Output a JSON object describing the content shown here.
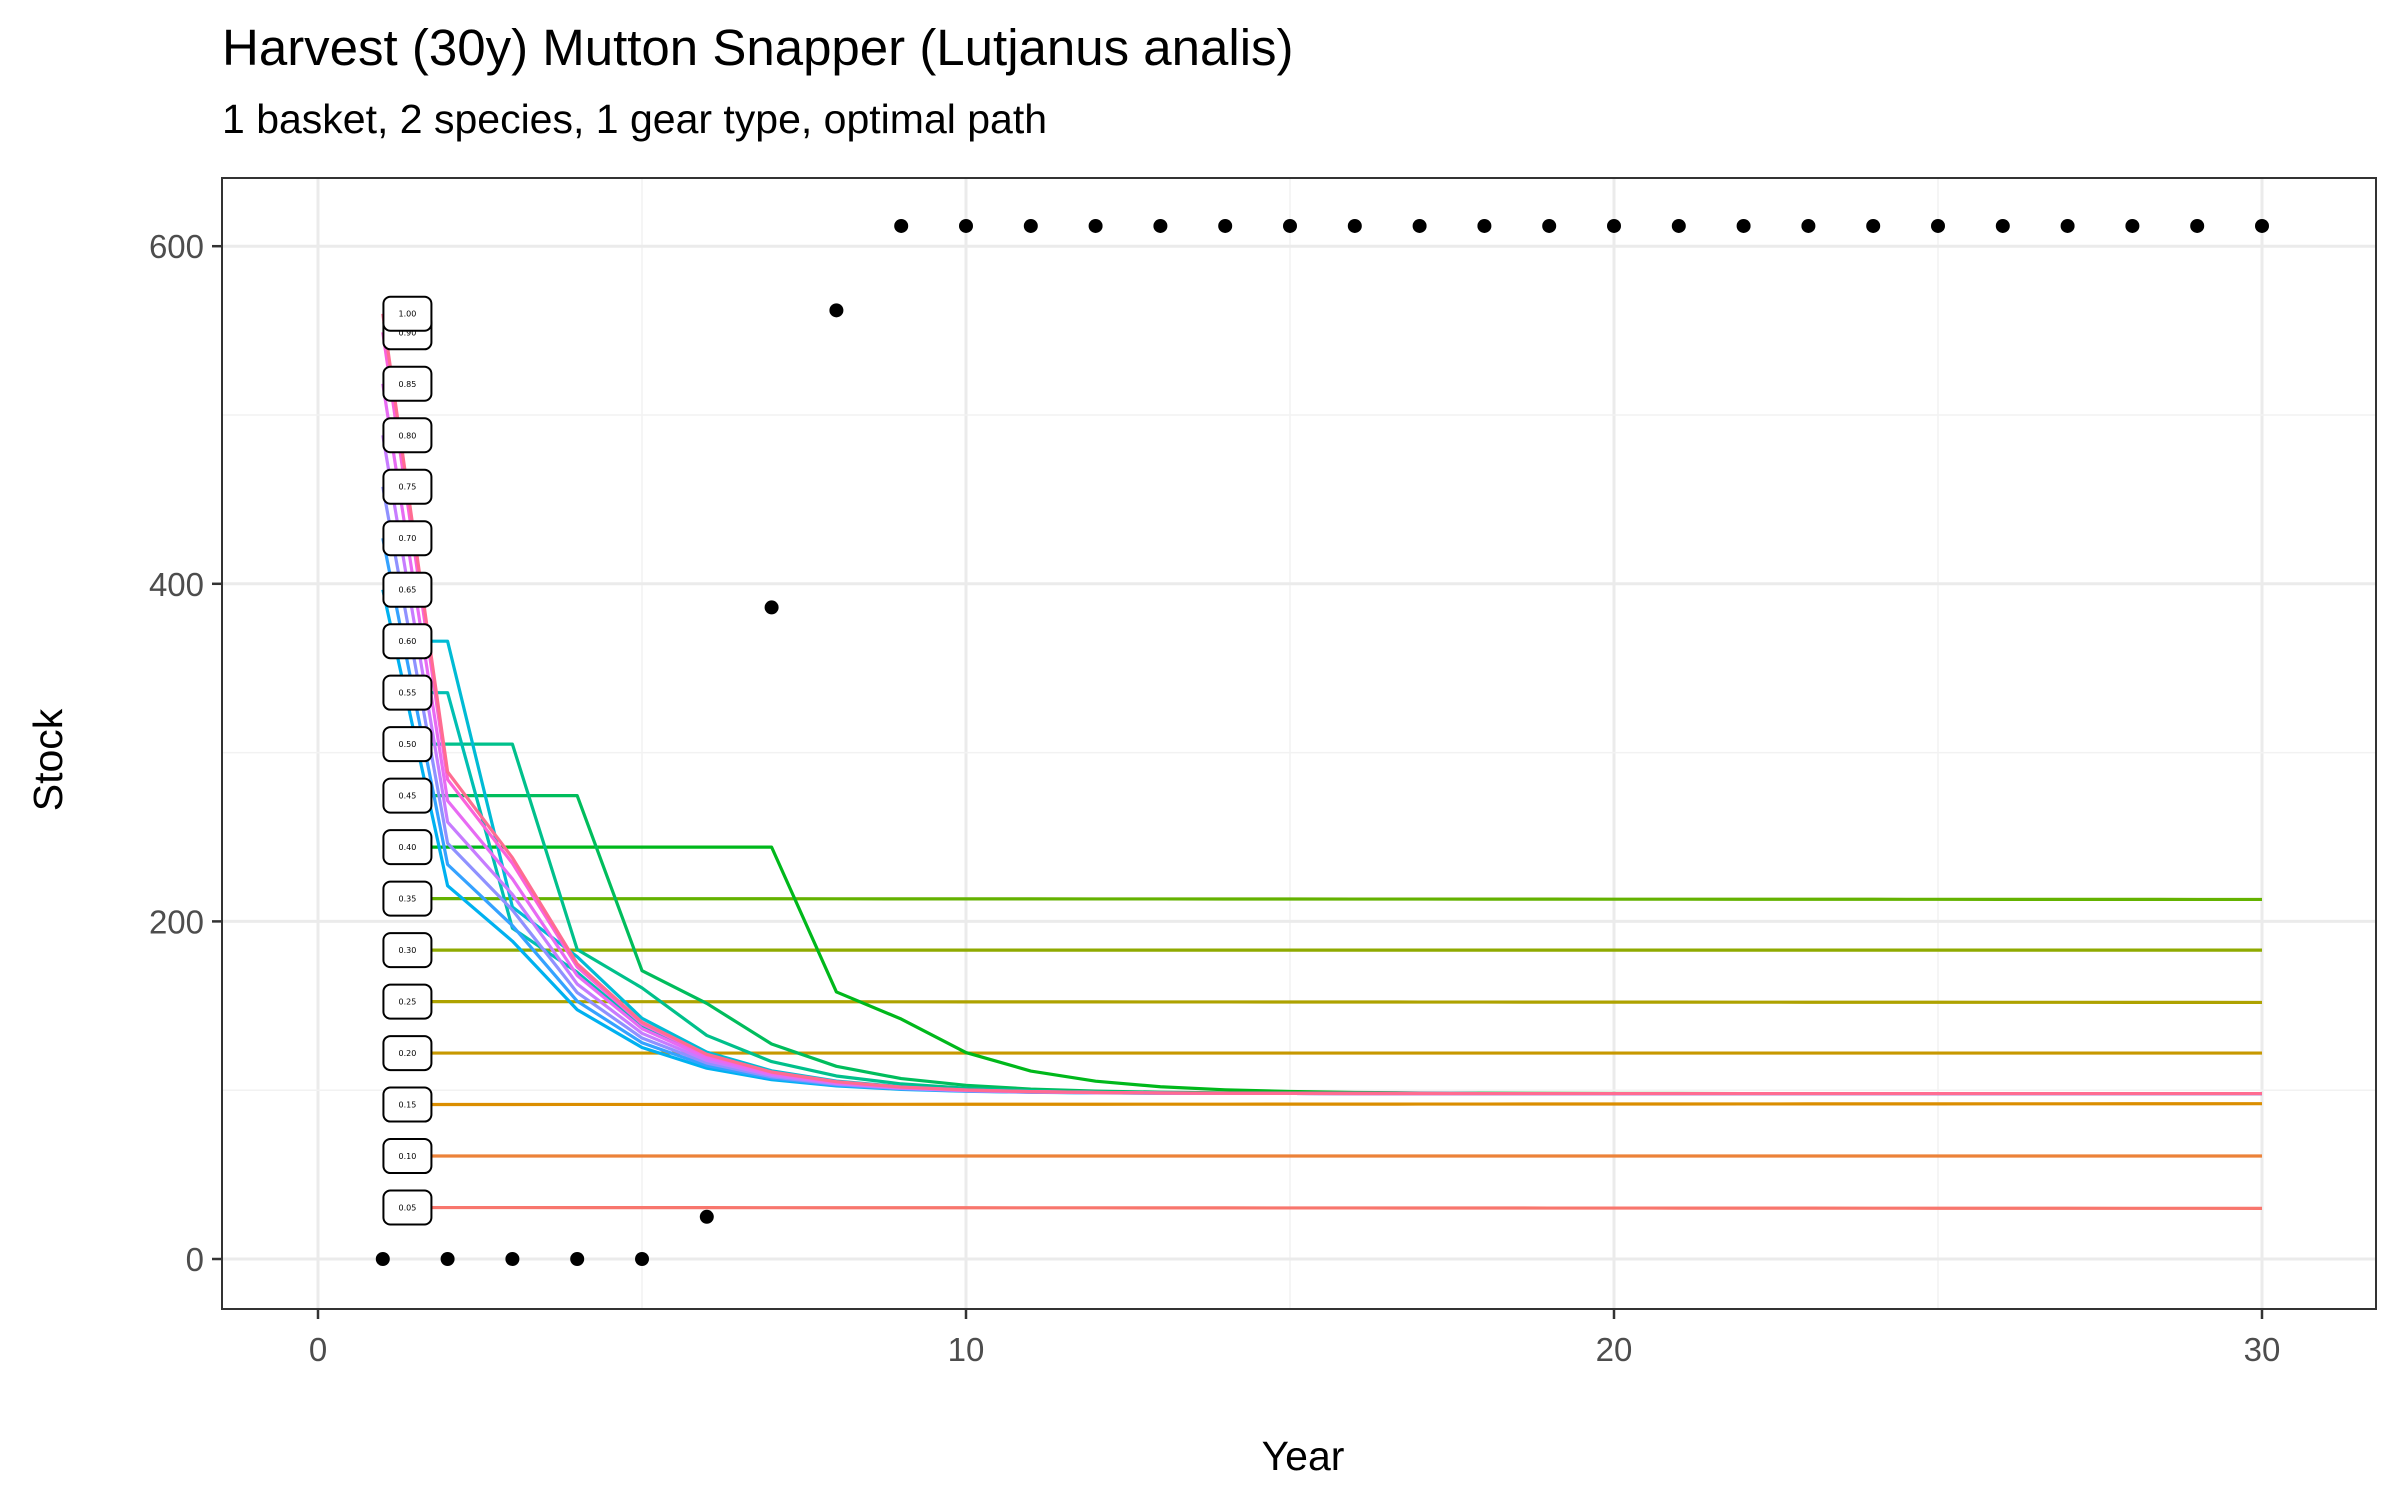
{
  "chart_data": {
    "type": "line",
    "title": "Harvest (30y) Mutton Snapper (Lutjanus analis)",
    "subtitle": "1 basket, 2 species, 1 gear type, optimal path",
    "xlabel": "Year",
    "ylabel": "Stock",
    "xlim": [
      -1.5,
      31.6
    ],
    "ylim": [
      -30,
      640
    ],
    "x_ticks": [
      0,
      10,
      20,
      30
    ],
    "y_ticks": [
      0,
      200,
      400,
      600
    ],
    "grid": true,
    "legend": "none",
    "line_labels": [
      "0.05",
      "0.10",
      "0.15",
      "0.20",
      "0.25",
      "0.30",
      "0.35",
      "0.40",
      "0.45",
      "0.50",
      "0.55",
      "0.60",
      "0.65",
      "0.70",
      "0.75",
      "0.80",
      "0.85",
      "0.90",
      "1.00"
    ],
    "series": [
      {
        "label": "0.05",
        "color": "#F8766D",
        "start": 30.5,
        "plateau_end": 1,
        "end": 30,
        "kind": "flat"
      },
      {
        "label": "0.10",
        "color": "#EC8239",
        "start": 61,
        "plateau_end": 1,
        "end": 61,
        "kind": "flat"
      },
      {
        "label": "0.15",
        "color": "#DB8E00",
        "start": 91.5,
        "plateau_end": 1,
        "end": 92,
        "kind": "flat"
      },
      {
        "label": "0.20",
        "color": "#C79800",
        "start": 122,
        "plateau_end": 1,
        "end": 122,
        "kind": "flat"
      },
      {
        "label": "0.25",
        "color": "#AEA200",
        "start": 152.5,
        "plateau_end": 1,
        "end": 152,
        "kind": "flat"
      },
      {
        "label": "0.30",
        "color": "#8FAA00",
        "start": 183,
        "plateau_end": 1,
        "end": 183,
        "kind": "flat"
      },
      {
        "label": "0.35",
        "color": "#64B200",
        "start": 213.5,
        "plateau_end": 1,
        "end": 213,
        "kind": "flat"
      },
      {
        "label": "0.40",
        "color": "#00B81B",
        "start": 244,
        "plateau_end": 7,
        "end": 98,
        "kind": "decay"
      },
      {
        "label": "0.45",
        "color": "#00BD5C",
        "start": 274.5,
        "plateau_end": 4,
        "end": 98,
        "kind": "decay"
      },
      {
        "label": "0.50",
        "color": "#00C08B",
        "start": 305,
        "plateau_end": 3,
        "end": 98,
        "kind": "decay"
      },
      {
        "label": "0.55",
        "color": "#00BFB2",
        "start": 335.5,
        "plateau_end": 2,
        "end": 98,
        "kind": "decay"
      },
      {
        "label": "0.60",
        "color": "#00BBD5",
        "start": 366,
        "plateau_end": 2,
        "end": 98,
        "kind": "decay"
      },
      {
        "label": "0.65",
        "color": "#00B1F0",
        "start": 396.5,
        "plateau_end": 1,
        "end": 98,
        "kind": "decay"
      },
      {
        "label": "0.70",
        "color": "#35A2FF",
        "start": 427,
        "plateau_end": 1,
        "end": 98,
        "kind": "decay"
      },
      {
        "label": "0.75",
        "color": "#8F91FF",
        "start": 457.5,
        "plateau_end": 1,
        "end": 98,
        "kind": "decay"
      },
      {
        "label": "0.80",
        "color": "#C77CFF",
        "start": 488,
        "plateau_end": 1,
        "end": 98,
        "kind": "decay"
      },
      {
        "label": "0.85",
        "color": "#E76BF3",
        "start": 518.5,
        "plateau_end": 1,
        "end": 98,
        "kind": "decay"
      },
      {
        "label": "0.90",
        "color": "#FA62DB",
        "start": 549,
        "plateau_end": 1,
        "end": 98,
        "kind": "decay"
      },
      {
        "label": "1.00",
        "color": "#FF6C91",
        "start": 560,
        "plateau_end": 1,
        "end": 98,
        "kind": "decay"
      }
    ],
    "optimal_path": {
      "color": "#000000",
      "x": [
        1,
        2,
        3,
        4,
        5,
        6,
        7,
        8,
        9,
        10,
        11,
        12,
        13,
        14,
        15,
        16,
        17,
        18,
        19,
        20,
        21,
        22,
        23,
        24,
        25,
        26,
        27,
        28,
        29,
        30
      ],
      "y": [
        0,
        0,
        0,
        0,
        0,
        25,
        386,
        562,
        612,
        612,
        612,
        612,
        612,
        612,
        612,
        612,
        612,
        612,
        612,
        612,
        612,
        612,
        612,
        612,
        612,
        612,
        612,
        612,
        612,
        612
      ]
    }
  }
}
